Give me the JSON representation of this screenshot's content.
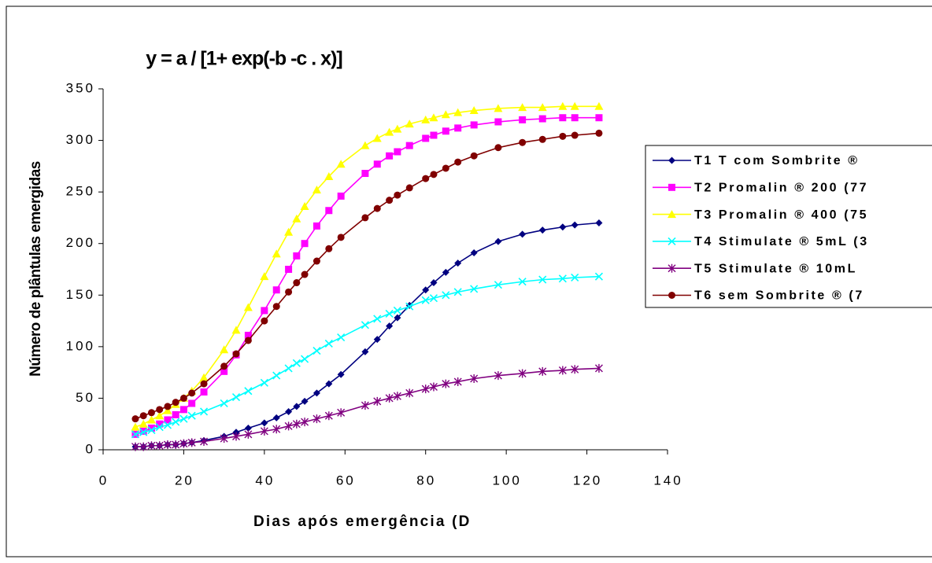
{
  "chart_data": {
    "type": "line",
    "title": "y = a / [1+ exp(-b -c . x)]",
    "x_label": "Dias após emergência (D",
    "y_label": "Número de plântulas emergidas",
    "x": [
      8,
      10,
      12,
      14,
      16,
      18,
      20,
      22,
      25,
      30,
      33,
      36,
      40,
      43,
      46,
      48,
      50,
      53,
      56,
      59,
      65,
      68,
      71,
      73,
      76,
      80,
      82,
      85,
      88,
      92,
      98,
      104,
      109,
      114,
      117,
      123
    ],
    "series": [
      {
        "name": "T1 T com Sombrite ®",
        "color": "#000080",
        "marker": "diamond",
        "values": [
          3,
          3,
          4,
          4,
          5,
          5,
          6,
          7,
          9,
          13,
          17,
          21,
          26,
          31,
          37,
          42,
          47,
          55,
          64,
          73,
          95,
          107,
          120,
          128,
          140,
          155,
          162,
          172,
          181,
          191,
          202,
          209,
          213,
          216,
          218,
          220
        ]
      },
      {
        "name": "T2 Promalin ® 200 (77",
        "color": "#ff00ff",
        "marker": "square",
        "values": [
          15,
          18,
          21,
          25,
          29,
          34,
          39,
          45,
          56,
          76,
          92,
          111,
          135,
          155,
          175,
          188,
          200,
          217,
          232,
          246,
          268,
          277,
          285,
          289,
          295,
          302,
          305,
          309,
          312,
          315,
          318,
          320,
          321,
          322,
          322,
          322
        ]
      },
      {
        "name": "T3 Promalin ® 400 (75",
        "color": "#ffff00",
        "marker": "triangle",
        "values": [
          22,
          25,
          29,
          33,
          38,
          44,
          50,
          57,
          70,
          97,
          116,
          138,
          168,
          190,
          211,
          224,
          236,
          252,
          265,
          277,
          295,
          302,
          308,
          311,
          316,
          320,
          322,
          325,
          327,
          329,
          331,
          332,
          332,
          333,
          333,
          333
        ]
      },
      {
        "name": "T4 Stimulate ® 5mL (3",
        "color": "#00ffff",
        "marker": "x",
        "values": [
          15,
          17,
          19,
          22,
          24,
          27,
          30,
          33,
          37,
          45,
          51,
          57,
          65,
          72,
          79,
          84,
          88,
          96,
          103,
          109,
          121,
          127,
          132,
          135,
          139,
          145,
          147,
          150,
          153,
          156,
          160,
          163,
          165,
          166,
          167,
          168
        ]
      },
      {
        "name": "T5 Stimulate ® 10mL",
        "color": "#800080",
        "marker": "star",
        "values": [
          3,
          3,
          4,
          4,
          5,
          5,
          6,
          7,
          8,
          11,
          13,
          15,
          18,
          20,
          23,
          25,
          27,
          30,
          33,
          36,
          43,
          47,
          50,
          52,
          55,
          59,
          61,
          64,
          66,
          69,
          72,
          74,
          76,
          77,
          78,
          79
        ]
      },
      {
        "name": "T6 sem Sombrite ® (7",
        "color": "#800000",
        "marker": "circle",
        "values": [
          30,
          33,
          36,
          39,
          42,
          46,
          50,
          55,
          64,
          81,
          93,
          106,
          125,
          139,
          153,
          162,
          170,
          183,
          195,
          206,
          225,
          234,
          242,
          247,
          254,
          263,
          267,
          273,
          279,
          285,
          293,
          298,
          301,
          304,
          305,
          307
        ]
      }
    ],
    "xlim": [
      0,
      140
    ],
    "xticks": [
      0,
      20,
      40,
      60,
      80,
      100,
      120,
      140
    ],
    "ylim": [
      0,
      350
    ],
    "yticks": [
      0,
      50,
      100,
      150,
      200,
      250,
      300,
      350
    ],
    "legend": "right"
  }
}
